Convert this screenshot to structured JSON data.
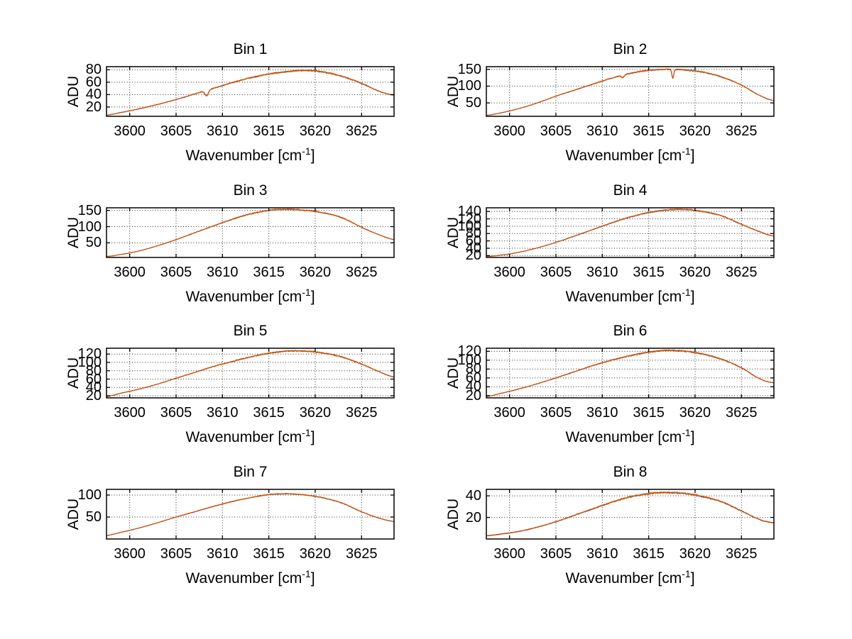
{
  "figure": {
    "background": "#ffffff",
    "ylabel": "ADU",
    "xlabel_base": "Wavenumber [cm",
    "xlabel_sup": "-1",
    "xlabel_end": "]",
    "xticks": [
      3600,
      3605,
      3610,
      3615,
      3620,
      3625
    ],
    "xlim": [
      3597.5,
      3628.5
    ],
    "grid": "dotted",
    "axis_color": "#000000",
    "grid_color": "#2a2a2a",
    "series_colors": [
      "#3a3ab0",
      "#9a9a10",
      "#ee7911",
      "#c8440e"
    ]
  },
  "chart_data": [
    {
      "type": "line",
      "title": "Bin 1",
      "ylabel": "ADU",
      "xlabel": "Wavenumber [cm^-1]",
      "xlim": [
        3597.5,
        3628.5
      ],
      "ylim": [
        5,
        85
      ],
      "yticks": [
        20,
        40,
        60,
        80
      ],
      "profile_x": [
        3597.5,
        3599,
        3601,
        3603,
        3605,
        3607,
        3609,
        3611,
        3613,
        3615,
        3617,
        3619,
        3621,
        3623,
        3625,
        3627,
        3628.5
      ],
      "profile_adu": [
        7,
        11,
        17,
        24,
        32,
        41,
        50,
        59,
        67,
        73,
        77,
        79,
        76,
        69,
        58,
        45,
        39
      ],
      "noise_adu": 1.1,
      "dips": [
        {
          "x": 3608.3,
          "depth": 9,
          "width": 0.18
        }
      ]
    },
    {
      "type": "line",
      "title": "Bin 2",
      "ylabel": "ADU",
      "xlabel": "Wavenumber [cm^-1]",
      "xlim": [
        3597.5,
        3628.5
      ],
      "ylim": [
        10,
        158
      ],
      "yticks": [
        50,
        100,
        150
      ],
      "profile_x": [
        3597.5,
        3599,
        3601,
        3603,
        3605,
        3607,
        3609,
        3611,
        3613,
        3615,
        3617,
        3619,
        3621,
        3623,
        3625,
        3627,
        3628.5
      ],
      "profile_adu": [
        13,
        20,
        33,
        50,
        70,
        88,
        106,
        124,
        138,
        147,
        150,
        148,
        141,
        126,
        103,
        72,
        57
      ],
      "noise_adu": 1.8,
      "dips": [
        {
          "x": 3612.2,
          "depth": 8,
          "width": 0.15
        },
        {
          "x": 3617.6,
          "depth": 27,
          "width": 0.1
        }
      ]
    },
    {
      "type": "line",
      "title": "Bin 3",
      "ylabel": "ADU",
      "xlabel": "Wavenumber [cm^-1]",
      "xlim": [
        3597.5,
        3628.5
      ],
      "ylim": [
        5,
        158
      ],
      "yticks": [
        50,
        100,
        150
      ],
      "profile_x": [
        3597.5,
        3599,
        3601,
        3603,
        3605,
        3607,
        3609,
        3611,
        3613,
        3615,
        3617,
        3619,
        3621,
        3623,
        3625,
        3627,
        3628.5
      ],
      "profile_adu": [
        8,
        14,
        25,
        41,
        60,
        81,
        102,
        122,
        139,
        150,
        153,
        150,
        142,
        126,
        98,
        74,
        60
      ],
      "noise_adu": 1.8,
      "dips": []
    },
    {
      "type": "line",
      "title": "Bin 4",
      "ylabel": "ADU",
      "xlabel": "Wavenumber [cm^-1]",
      "xlim": [
        3597.5,
        3628.5
      ],
      "ylim": [
        15,
        150
      ],
      "yticks": [
        20,
        40,
        60,
        80,
        100,
        120,
        140
      ],
      "profile_x": [
        3597.5,
        3599,
        3601,
        3603,
        3605,
        3607,
        3609,
        3611,
        3613,
        3615,
        3617,
        3619,
        3621,
        3623,
        3625,
        3627,
        3628.5
      ],
      "profile_adu": [
        18,
        21,
        29,
        41,
        56,
        73,
        91,
        109,
        125,
        137,
        144,
        145,
        139,
        127,
        105,
        85,
        73
      ],
      "noise_adu": 1.6,
      "dips": []
    },
    {
      "type": "line",
      "title": "Bin 5",
      "ylabel": "ADU",
      "xlabel": "Wavenumber [cm^-1]",
      "xlim": [
        3597.5,
        3628.5
      ],
      "ylim": [
        15,
        134
      ],
      "yticks": [
        20,
        40,
        60,
        80,
        100,
        120
      ],
      "profile_x": [
        3597.5,
        3599,
        3601,
        3603,
        3605,
        3607,
        3609,
        3611,
        3613,
        3615,
        3617,
        3619,
        3621,
        3623,
        3625,
        3627,
        3628.5
      ],
      "profile_adu": [
        18,
        26,
        36,
        48,
        62,
        76,
        90,
        102,
        113,
        122,
        127,
        127,
        122,
        112,
        96,
        77,
        65
      ],
      "noise_adu": 1.5,
      "dips": []
    },
    {
      "type": "line",
      "title": "Bin 6",
      "ylabel": "ADU",
      "xlabel": "Wavenumber [cm^-1]",
      "xlim": [
        3597.5,
        3628.5
      ],
      "ylim": [
        15,
        127
      ],
      "yticks": [
        20,
        40,
        60,
        80,
        100,
        120
      ],
      "profile_x": [
        3597.5,
        3599,
        3601,
        3603,
        3605,
        3607,
        3609,
        3611,
        3613,
        3615,
        3617,
        3619,
        3621,
        3623,
        3625,
        3627,
        3628.5
      ],
      "profile_adu": [
        18,
        25,
        35,
        47,
        60,
        74,
        88,
        100,
        110,
        118,
        122,
        120,
        113,
        101,
        83,
        58,
        49
      ],
      "noise_adu": 1.5,
      "dips": []
    },
    {
      "type": "line",
      "title": "Bin 7",
      "ylabel": "ADU",
      "xlabel": "Wavenumber [cm^-1]",
      "xlim": [
        3597.5,
        3628.5
      ],
      "ylim": [
        0,
        113
      ],
      "yticks": [
        50,
        100
      ],
      "profile_x": [
        3597.5,
        3599,
        3601,
        3603,
        3605,
        3607,
        3609,
        3611,
        3613,
        3615,
        3617,
        3619,
        3621,
        3623,
        3625,
        3627,
        3628.5
      ],
      "profile_adu": [
        8,
        15,
        25,
        37,
        50,
        62,
        74,
        85,
        94,
        101,
        103,
        100,
        93,
        81,
        62,
        47,
        40
      ],
      "noise_adu": 1.0,
      "dips": []
    },
    {
      "type": "line",
      "title": "Bin 8",
      "ylabel": "ADU",
      "xlabel": "Wavenumber [cm^-1]",
      "xlim": [
        3597.5,
        3628.5
      ],
      "ylim": [
        0,
        46
      ],
      "yticks": [
        20,
        40
      ],
      "profile_x": [
        3597.5,
        3599,
        3601,
        3603,
        3605,
        3607,
        3609,
        3611,
        3613,
        3615,
        3617,
        3619,
        3621,
        3623,
        3625,
        3627,
        3628.5
      ],
      "profile_adu": [
        3,
        4.5,
        7,
        11,
        16,
        22,
        28,
        34,
        39,
        42,
        43,
        42,
        39,
        34,
        26,
        18,
        15
      ],
      "noise_adu": 0.7,
      "dips": []
    }
  ]
}
